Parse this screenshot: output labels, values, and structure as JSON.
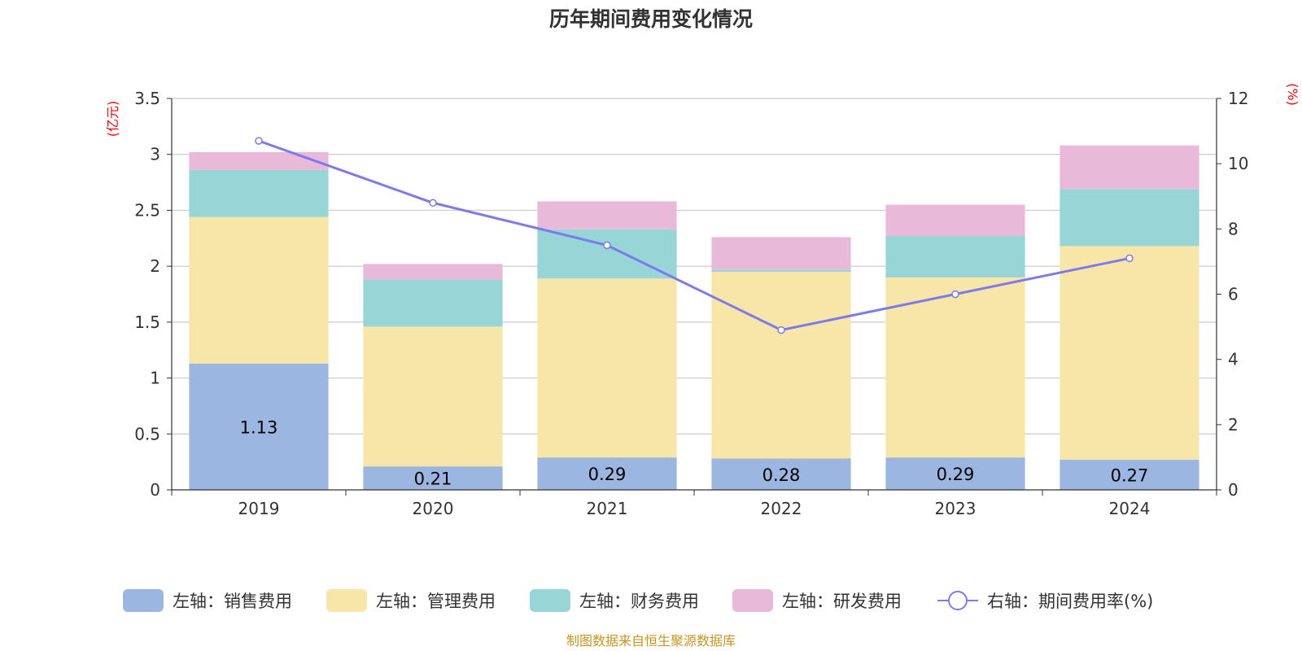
{
  "chart_data": {
    "type": "bar",
    "title": "历年期间费用变化情况",
    "categories": [
      "2019",
      "2020",
      "2021",
      "2022",
      "2023",
      "2024"
    ],
    "left_axis": {
      "unit": "(亿元)",
      "ylim": [
        0,
        3.5
      ],
      "ticks": [
        "0",
        "0.5",
        "1",
        "1.5",
        "2",
        "2.5",
        "3",
        "3.5"
      ]
    },
    "right_axis": {
      "unit": "(%)",
      "ylim": [
        0,
        12
      ],
      "ticks": [
        "0",
        "2",
        "4",
        "6",
        "8",
        "10",
        "12"
      ]
    },
    "series": [
      {
        "name": "左轴：销售费用",
        "type": "bar",
        "axis": "left",
        "color": "#9bb6e0",
        "values": [
          1.13,
          0.21,
          0.29,
          0.28,
          0.29,
          0.27
        ],
        "labels": [
          "1.13",
          "0.21",
          "0.29",
          "0.28",
          "0.29",
          "0.27"
        ]
      },
      {
        "name": "左轴：管理费用",
        "type": "bar",
        "axis": "left",
        "color": "#f7e6a8",
        "values": [
          1.31,
          1.25,
          1.6,
          1.67,
          1.61,
          1.91
        ]
      },
      {
        "name": "左轴：财务费用",
        "type": "bar",
        "axis": "left",
        "color": "#98d5d6",
        "values": [
          0.42,
          0.42,
          0.44,
          0.02,
          0.37,
          0.51
        ]
      },
      {
        "name": "左轴：研发费用",
        "type": "bar",
        "axis": "left",
        "color": "#e8b9d9",
        "values": [
          0.16,
          0.14,
          0.25,
          0.29,
          0.28,
          0.39
        ]
      },
      {
        "name": "右轴：期间费用率(%)",
        "type": "line",
        "axis": "right",
        "color": "#7b7bef",
        "values": [
          10.7,
          8.8,
          7.5,
          4.9,
          6.0,
          7.1
        ]
      }
    ],
    "grid": true,
    "legend_position": "bottom"
  },
  "footer": {
    "source": "制图数据来自恒生聚源数据库"
  }
}
